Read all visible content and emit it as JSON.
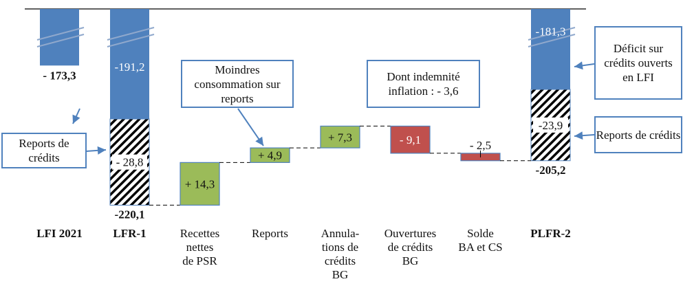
{
  "chart_data": {
    "type": "waterfall",
    "colors": {
      "total": "#4f81bd",
      "increase": "#9bbb59",
      "decrease": "#c0504d",
      "reports_hatch": "#000000"
    },
    "categories": [
      "LFI 2021",
      "LFR-1",
      "Recettes nettes de PSR",
      "Reports",
      "Annula-tions de crédits BG",
      "Ouvertures de crédits BG",
      "Solde BA et CS",
      "PLFR-2"
    ],
    "totals": [
      {
        "category": "LFI 2021",
        "value": -173.3,
        "label": "- 173,3"
      },
      {
        "category": "LFR-1",
        "value": -220.1,
        "label": "-220,1",
        "segments": [
          {
            "name": "deficit",
            "value": -191.2,
            "label": "-191,2"
          },
          {
            "name": "reports",
            "value": -28.8,
            "label": "- 28,8"
          }
        ]
      },
      {
        "category": "PLFR-2",
        "value": -205.2,
        "label": "-205,2",
        "segments": [
          {
            "name": "deficit",
            "value": -181.3,
            "label": "-181,3"
          },
          {
            "name": "reports",
            "value": -23.9,
            "label": "-23,9"
          }
        ]
      }
    ],
    "steps": [
      {
        "category": "Recettes nettes de PSR",
        "value": 14.3,
        "label": "+ 14,3"
      },
      {
        "category": "Reports",
        "value": 4.9,
        "label": "+ 4,9"
      },
      {
        "category": "Annula-tions de crédits BG",
        "value": 7.3,
        "label": "+ 7,3"
      },
      {
        "category": "Ouvertures de crédits BG",
        "value": -9.1,
        "label": "- 9,1"
      },
      {
        "category": "Solde BA et CS",
        "value": -2.5,
        "label": "- 2,5"
      }
    ],
    "axis_break": true,
    "annotations": {
      "reports_left": "Reports de crédits",
      "moindres": "Moindres consommation sur reports",
      "indemnite": "Dont indemnité inflation : - 3,6",
      "deficit": "Déficit sur crédits ouverts en LFI",
      "reports_right": "Reports de crédits"
    },
    "category_lines": [
      [
        "LFI 2021"
      ],
      [
        "LFR-1"
      ],
      [
        "Recettes",
        "nettes",
        "de PSR"
      ],
      [
        "Reports"
      ],
      [
        "Annula-",
        "tions de",
        "crédits",
        "BG"
      ],
      [
        "Ouvertures",
        "de crédits",
        "BG"
      ],
      [
        "Solde",
        "BA et CS"
      ],
      [
        "PLFR-2"
      ]
    ]
  }
}
